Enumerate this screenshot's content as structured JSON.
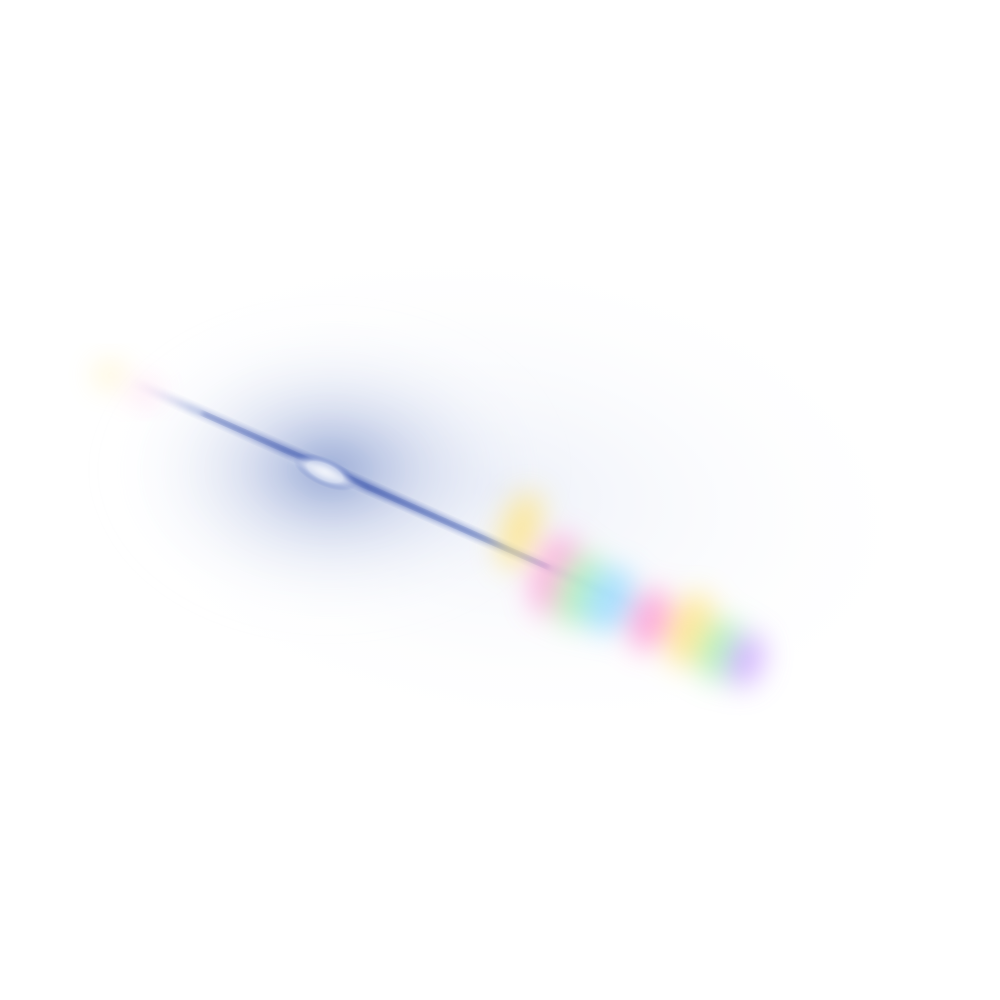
{
  "scene": {
    "subject": "lens-flare",
    "background_color": "#ffffff",
    "haze_color": "#3d5db0",
    "core_color": "#e7ecf6",
    "streak_color": "#4a62b8",
    "rainbow_colors": [
      "#ff8fd0",
      "#ffe27a",
      "#9ff0a8",
      "#8fd8ff",
      "#c59bff",
      "#ff9ad6"
    ]
  }
}
